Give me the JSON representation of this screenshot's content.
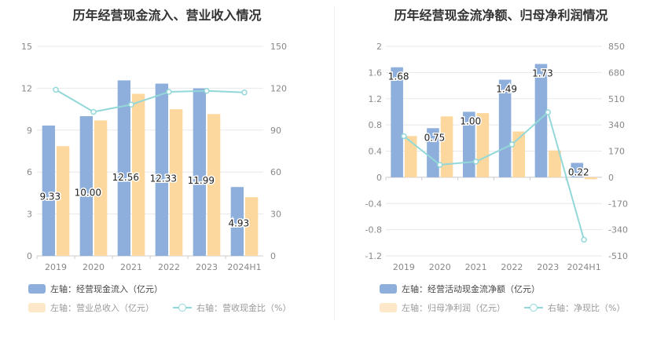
{
  "charts": [
    {
      "title": "历年经营现金流入、营业收入情况",
      "legend": {
        "bar1": "左轴：经营现金流入（亿元）",
        "bar2": "左轴：营业总收入（亿元）",
        "line": "右轴：营收现金比（%）"
      }
    },
    {
      "title": "历年经营现金流净额、归母净利润情况",
      "legend": {
        "bar1": "左轴：经营活动现金流净额（亿元）",
        "bar2": "左轴：归母净利润（亿元）",
        "line": "右轴：净现比（%）"
      }
    }
  ],
  "colors": {
    "bar1": "#8eaedc",
    "bar2": "#fdd89e",
    "line": "#92d8d9",
    "grid": "#e8e8e8",
    "axis_text": "#888888"
  },
  "chart_data": [
    {
      "type": "bar",
      "title": "历年经营现金流入、营业收入情况",
      "categories": [
        "2019",
        "2020",
        "2021",
        "2022",
        "2023",
        "2024H1"
      ],
      "left_axis": {
        "ticks": [
          "0",
          "3",
          "6",
          "9",
          "12",
          "15"
        ],
        "ylim": [
          0,
          15
        ]
      },
      "right_axis": {
        "ticks": [
          "0",
          "30",
          "60",
          "90",
          "120",
          "150"
        ],
        "ylim": [
          0,
          150
        ]
      },
      "series": [
        {
          "name": "左轴：经营现金流入（亿元）",
          "axis": "left",
          "kind": "bar",
          "values": [
            9.33,
            10.0,
            12.56,
            12.33,
            11.99,
            4.93
          ],
          "labels": [
            "9.33",
            "10.00",
            "12.56",
            "12.33",
            "11.99",
            "4.93"
          ]
        },
        {
          "name": "左轴：营业总收入（亿元）",
          "axis": "left",
          "kind": "bar",
          "values": [
            7.85,
            9.7,
            11.6,
            10.5,
            10.15,
            4.2
          ]
        },
        {
          "name": "右轴：营收现金比（%）",
          "axis": "right",
          "kind": "line",
          "values": [
            118.9,
            103.1,
            108.3,
            117.4,
            118.1,
            117.0
          ]
        }
      ]
    },
    {
      "type": "bar",
      "title": "历年经营现金流净额、归母净利润情况",
      "categories": [
        "2019",
        "2020",
        "2021",
        "2022",
        "2023",
        "2024H1"
      ],
      "left_axis": {
        "ticks": [
          "-1.2",
          "-0.8",
          "-0.4",
          "0",
          "0.4",
          "0.8",
          "1.2",
          "1.6",
          "2"
        ],
        "ylim": [
          -1.2,
          2
        ]
      },
      "right_axis": {
        "ticks": [
          "-510",
          "-340",
          "-170",
          "0",
          "170",
          "340",
          "510",
          "680",
          "850"
        ],
        "ylim": [
          -510,
          850
        ]
      },
      "series": [
        {
          "name": "左轴：经营活动现金流净额（亿元）",
          "axis": "left",
          "kind": "bar",
          "values": [
            1.68,
            0.75,
            1.0,
            1.49,
            1.73,
            0.22
          ],
          "labels": [
            "1.68",
            "0.75",
            "1.00",
            "1.49",
            "1.73",
            "0.22"
          ]
        },
        {
          "name": "左轴：归母净利润（亿元）",
          "axis": "left",
          "kind": "bar",
          "values": [
            0.63,
            0.93,
            0.98,
            0.7,
            0.41,
            -0.03
          ]
        },
        {
          "name": "右轴：净现比（%）",
          "axis": "right",
          "kind": "line",
          "values": [
            267,
            81,
            102,
            213,
            422,
            -405
          ]
        }
      ]
    }
  ]
}
